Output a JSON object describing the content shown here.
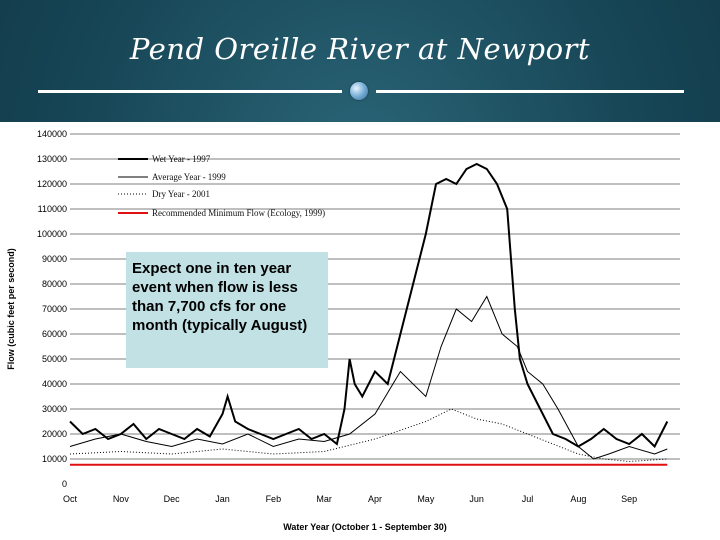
{
  "title": "Pend Oreille River at Newport",
  "annotation": "Expect one in ten year event when flow is less than 7,700 cfs for one month (typically August)",
  "colors": {
    "background": "#17485a",
    "wet": "#000000",
    "min": "#e01010",
    "annotation_bg": "#c2e1e4"
  },
  "chart_data": {
    "type": "line",
    "xlabel": "Water Year (October 1 - September 30)",
    "ylabel": "Flow (cubic feet per second)",
    "ylim": [
      0,
      140000
    ],
    "xlim": [
      0,
      12
    ],
    "yticks": [
      "0",
      "10000",
      "20000",
      "30000",
      "40000",
      "50000",
      "60000",
      "70000",
      "80000",
      "90000",
      "100000",
      "110000",
      "120000",
      "130000",
      "140000"
    ],
    "categories": [
      "Oct",
      "Nov",
      "Dec",
      "Jan",
      "Feb",
      "Mar",
      "Apr",
      "May",
      "Jun",
      "Jul",
      "Aug",
      "Sep"
    ],
    "legend_position": "top-left",
    "grid": "major y-lines",
    "series": [
      {
        "name": "Wet Year - 1997",
        "style": "solid-thick",
        "x": [
          0,
          0.25,
          0.5,
          0.75,
          1.0,
          1.25,
          1.5,
          1.75,
          2.0,
          2.25,
          2.5,
          2.75,
          3.0,
          3.1,
          3.25,
          3.5,
          3.75,
          4.0,
          4.25,
          4.5,
          4.75,
          5.0,
          5.25,
          5.4,
          5.5,
          5.6,
          5.75,
          6.0,
          6.25,
          6.5,
          6.75,
          7.0,
          7.2,
          7.4,
          7.6,
          7.8,
          8.0,
          8.2,
          8.4,
          8.6,
          8.75,
          8.85,
          9.0,
          9.25,
          9.5,
          9.75,
          10.0,
          10.25,
          10.5,
          10.75,
          11.0,
          11.25,
          11.5,
          11.75
        ],
        "values": [
          25000,
          20000,
          22000,
          18000,
          20000,
          24000,
          18000,
          22000,
          20000,
          18000,
          22000,
          19000,
          28000,
          35000,
          25000,
          22000,
          20000,
          18000,
          20000,
          22000,
          18000,
          20000,
          16000,
          30000,
          50000,
          40000,
          35000,
          45000,
          40000,
          60000,
          80000,
          100000,
          120000,
          122000,
          120000,
          126000,
          128000,
          126000,
          120000,
          110000,
          70000,
          50000,
          40000,
          30000,
          20000,
          18000,
          15000,
          18000,
          22000,
          18000,
          16000,
          20000,
          15000,
          25000
        ]
      },
      {
        "name": "Average Year - 1999",
        "style": "solid-thin",
        "x": [
          0,
          0.5,
          1.0,
          1.5,
          2.0,
          2.5,
          3.0,
          3.5,
          4.0,
          4.5,
          5.0,
          5.5,
          6.0,
          6.5,
          7.0,
          7.3,
          7.6,
          7.9,
          8.2,
          8.5,
          8.8,
          9.0,
          9.3,
          9.6,
          10.0,
          10.3,
          10.6,
          11.0,
          11.5,
          11.75
        ],
        "values": [
          15000,
          18000,
          20000,
          17000,
          15000,
          18000,
          16000,
          20000,
          15000,
          18000,
          17000,
          20000,
          28000,
          45000,
          35000,
          55000,
          70000,
          65000,
          75000,
          60000,
          55000,
          45000,
          40000,
          30000,
          15000,
          10000,
          12000,
          15000,
          12000,
          14000
        ]
      },
      {
        "name": "Dry Year - 2001",
        "style": "dotted",
        "x": [
          0,
          1.0,
          2.0,
          3.0,
          4.0,
          5.0,
          6.0,
          7.0,
          7.5,
          8.0,
          8.5,
          9.0,
          9.5,
          10.0,
          10.5,
          11.0,
          11.75
        ],
        "values": [
          12000,
          13000,
          12000,
          14000,
          12000,
          13000,
          18000,
          25000,
          30000,
          26000,
          24000,
          20000,
          16000,
          12000,
          10000,
          9000,
          10000
        ]
      },
      {
        "name": "Recommended Minimum Flow (Ecology, 1999)",
        "style": "red",
        "x": [
          0,
          11.75
        ],
        "values": [
          7700,
          7700
        ]
      }
    ]
  }
}
